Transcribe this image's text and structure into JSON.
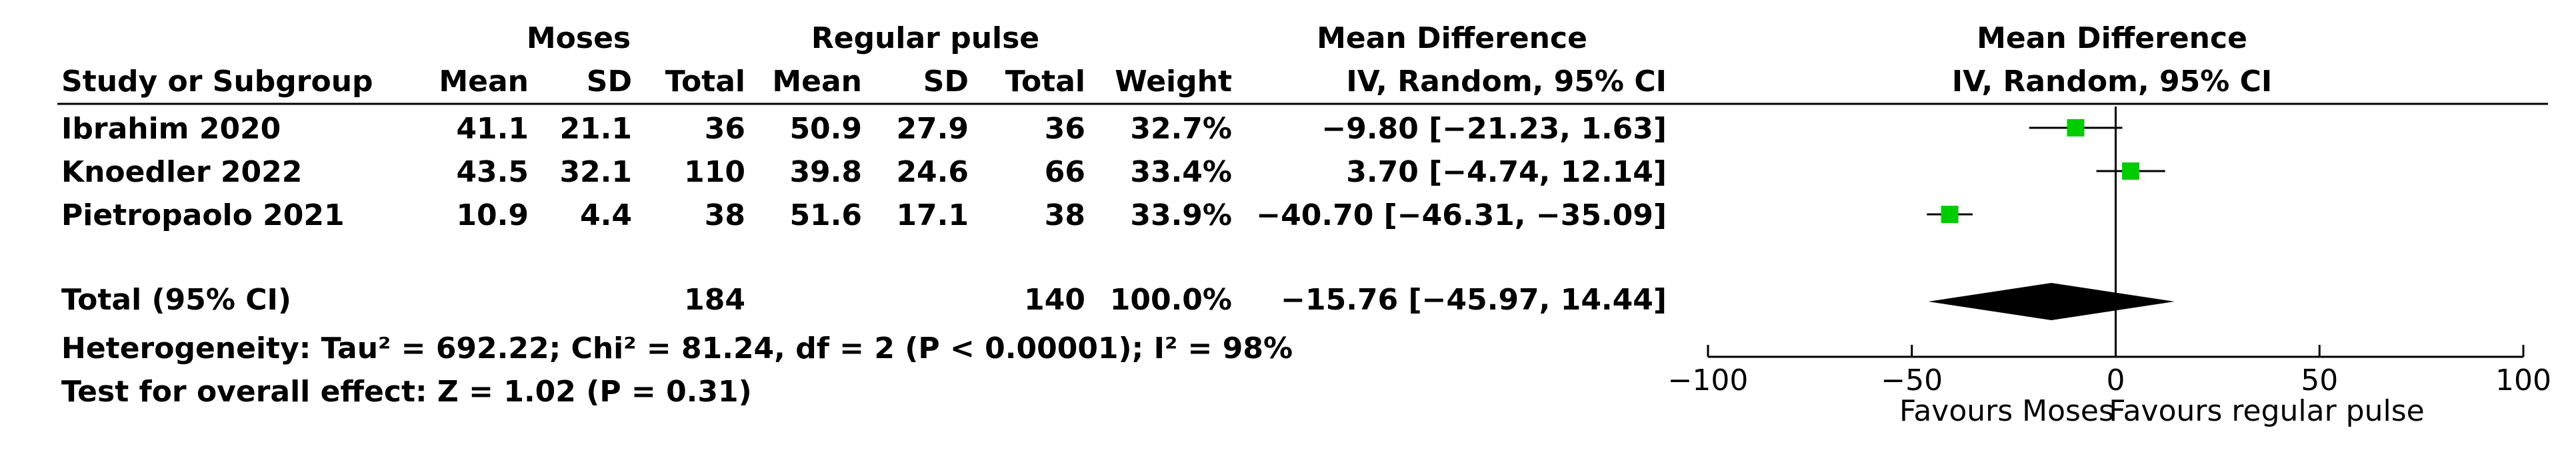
{
  "chart_data": {
    "type": "forest",
    "header": {
      "group1": "Moses",
      "group2": "Regular pulse",
      "study_col": "Study or Subgroup",
      "mean": "Mean",
      "sd": "SD",
      "total": "Total",
      "weight": "Weight",
      "effect_title": "Mean Difference",
      "effect_method": "IV, Random, 95% CI"
    },
    "studies": [
      {
        "name": "Ibrahim 2020",
        "mean1": "41.1",
        "sd1": "21.1",
        "n1": "36",
        "mean2": "50.9",
        "sd2": "27.9",
        "n2": "36",
        "weight": "32.7%",
        "ci_text": "−9.80 [−21.23, 1.63]",
        "md": -9.8,
        "lo": -21.23,
        "hi": 1.63
      },
      {
        "name": "Knoedler 2022",
        "mean1": "43.5",
        "sd1": "32.1",
        "n1": "110",
        "mean2": "39.8",
        "sd2": "24.6",
        "n2": "66",
        "weight": "33.4%",
        "ci_text": "3.70 [−4.74, 12.14]",
        "md": 3.7,
        "lo": -4.74,
        "hi": 12.14
      },
      {
        "name": "Pietropaolo 2021",
        "mean1": "10.9",
        "sd1": "4.4",
        "n1": "38",
        "mean2": "51.6",
        "sd2": "17.1",
        "n2": "38",
        "weight": "33.9%",
        "ci_text": "−40.70 [−46.31, −35.09]",
        "md": -40.7,
        "lo": -46.31,
        "hi": -35.09
      }
    ],
    "total": {
      "label": "Total (95% CI)",
      "n1": "184",
      "n2": "140",
      "weight": "100.0%",
      "ci_text": "−15.76 [−45.97, 14.44]",
      "md": -15.76,
      "lo": -45.97,
      "hi": 14.44
    },
    "heterogeneity": "Heterogeneity: Tau² = 692.22; Chi² = 81.24, df = 2 (P < 0.00001); I² = 98%",
    "overall_effect": "Test for overall effect: Z = 1.02 (P = 0.31)",
    "axis": {
      "min": -100,
      "max": 100,
      "ticks": [
        -100,
        -50,
        0,
        50,
        100
      ],
      "tick_labels": [
        "−100",
        "−50",
        "0",
        "50",
        "100"
      ]
    },
    "favours_left": "Favours Moses",
    "favours_right": "Favours regular pulse",
    "colors": {
      "marker": "#00cc00",
      "diamond": "#000000",
      "line": "#000000"
    }
  }
}
